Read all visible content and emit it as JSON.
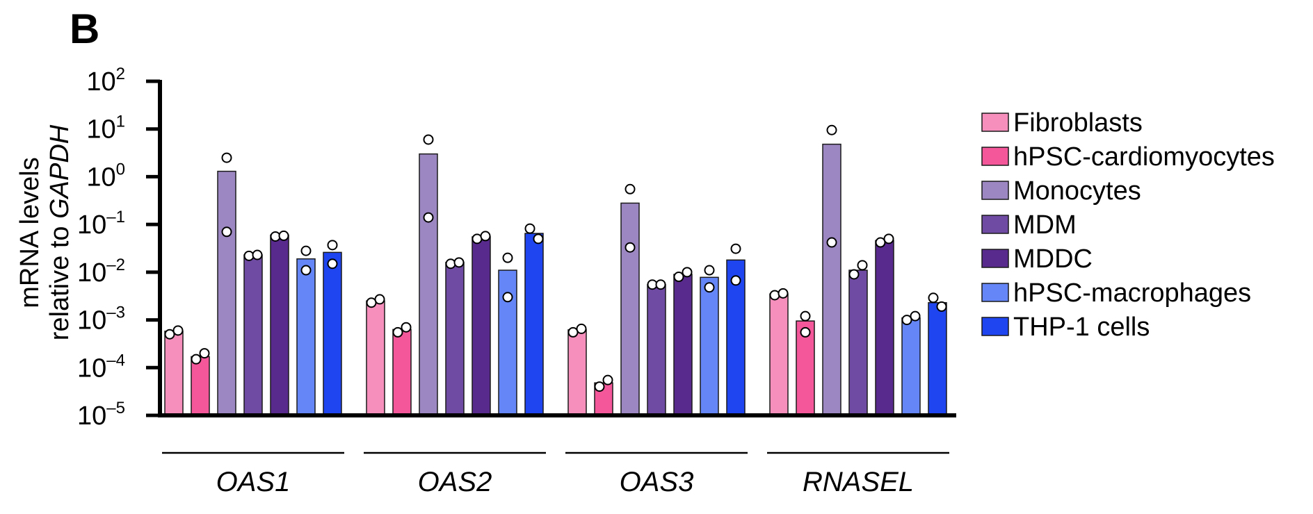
{
  "panel_label": "B",
  "chart_data": {
    "type": "bar",
    "yscale": "log",
    "ylim": [
      1e-05,
      100
    ],
    "y_tick_labels": [
      {
        "base": "10",
        "exp": "2"
      },
      {
        "base": "10",
        "exp": "1"
      },
      {
        "base": "10",
        "exp": "0"
      },
      {
        "base": "10",
        "exp": "–1"
      },
      {
        "base": "10",
        "exp": "–2"
      },
      {
        "base": "10",
        "exp": "–3"
      },
      {
        "base": "10",
        "exp": "–4"
      },
      {
        "base": "10",
        "exp": "–5"
      }
    ],
    "ylabel_line1": "mRNA levels",
    "ylabel_line2_prefix": "relative to ",
    "ylabel_line2_gene": "GAPDH",
    "categories": [
      "OAS1",
      "OAS2",
      "OAS3",
      "RNASEL"
    ],
    "legend_position": "right",
    "series": [
      {
        "name": "Fibroblasts",
        "color": "#f78fbd",
        "values": [
          0.00058,
          0.0025,
          0.00062,
          0.0035
        ],
        "points": [
          [
            0.0005,
            0.0006
          ],
          [
            0.0023,
            0.0027
          ],
          [
            0.00055,
            0.00065
          ],
          [
            0.0033,
            0.0036
          ]
        ]
      },
      {
        "name": "hPSC-cardiomyocytes",
        "color": "#f4579a",
        "values": [
          0.00017,
          0.00063,
          4.8e-05,
          0.00095
        ],
        "points": [
          [
            0.00015,
            0.0002
          ],
          [
            0.00055,
            0.0007
          ],
          [
            4e-05,
            5.5e-05
          ],
          [
            0.00055,
            0.0012
          ]
        ]
      },
      {
        "name": "Monocytes",
        "color": "#9d87c3",
        "values": [
          1.3,
          3.0,
          0.28,
          4.8
        ],
        "points": [
          [
            2.5,
            0.07
          ],
          [
            6.0,
            0.14
          ],
          [
            0.55,
            0.033
          ],
          [
            9.5,
            0.042
          ]
        ]
      },
      {
        "name": "MDM",
        "color": "#6f4ba3",
        "values": [
          0.023,
          0.016,
          0.0055,
          0.011
        ],
        "points": [
          [
            0.022,
            0.023
          ],
          [
            0.015,
            0.016
          ],
          [
            0.0055,
            0.0055
          ],
          [
            0.009,
            0.014
          ]
        ]
      },
      {
        "name": "MDDC",
        "color": "#582a8e",
        "values": [
          0.06,
          0.055,
          0.009,
          0.046
        ],
        "points": [
          [
            0.056,
            0.058
          ],
          [
            0.05,
            0.057
          ],
          [
            0.008,
            0.01
          ],
          [
            0.042,
            0.05
          ]
        ]
      },
      {
        "name": "hPSC-macrophages",
        "color": "#6486f7",
        "values": [
          0.019,
          0.011,
          0.0078,
          0.0011
        ],
        "points": [
          [
            0.028,
            0.011
          ],
          [
            0.02,
            0.003
          ],
          [
            0.011,
            0.0048
          ],
          [
            0.001,
            0.0012
          ]
        ]
      },
      {
        "name": "THP-1 cells",
        "color": "#1f45f0",
        "values": [
          0.026,
          0.065,
          0.018,
          0.0023
        ],
        "points": [
          [
            0.037,
            0.015
          ],
          [
            0.082,
            0.05
          ],
          [
            0.031,
            0.0067
          ],
          [
            0.0029,
            0.0019
          ]
        ]
      }
    ]
  }
}
